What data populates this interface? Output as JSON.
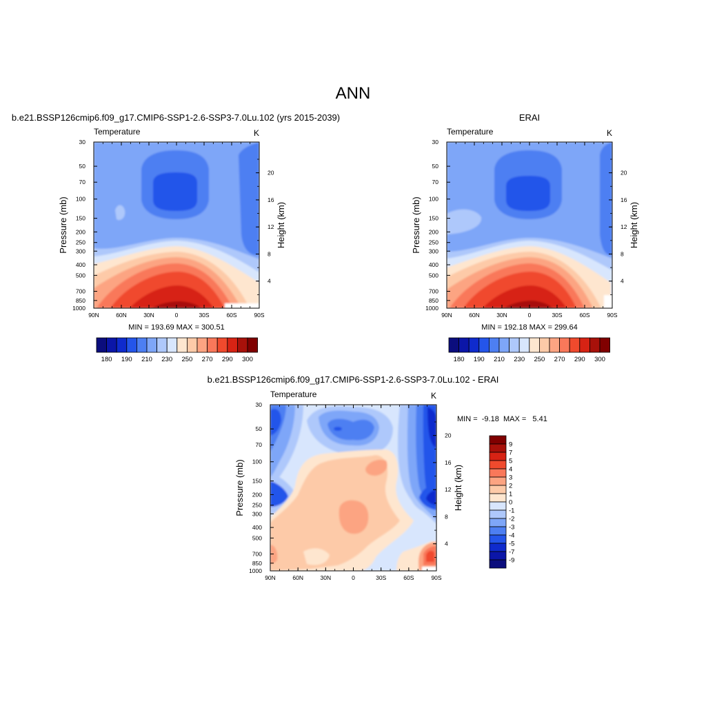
{
  "page_title": "ANN",
  "palette_colors": [
    "#0b0d7d",
    "#0b16a8",
    "#0f2bcd",
    "#2455ea",
    "#4d7ff2",
    "#7ea6f8",
    "#aec8fb",
    "#d8e6fd",
    "#fee6cf",
    "#fdcaa8",
    "#fca482",
    "#f9785a",
    "#f04a2d",
    "#d72314",
    "#a8110a",
    "#800000"
  ],
  "chart_data": [
    {
      "id": "model",
      "type": "contour",
      "title": "b.e21.BSSP126cmip6.f09_g17.CMIP6-SSP1-2.6-SSP3-7.0Lu.102 (yrs 2015-2039)",
      "left_label": "Temperature",
      "units": "K",
      "ylabel": "Pressure (mb)",
      "ylabel_right": "Height (km)",
      "x_ticks": [
        "90N",
        "60N",
        "30N",
        "0",
        "30S",
        "60S",
        "90S"
      ],
      "y_ticks": [
        "30",
        "50",
        "70",
        "100",
        "150",
        "200",
        "250",
        "300",
        "400",
        "500",
        "700",
        "850",
        "1000"
      ],
      "y_ticks_right": [
        "20",
        "16",
        "12",
        "8",
        "4"
      ],
      "y_scale": "log",
      "ylim": [
        1000,
        30
      ],
      "min_max_text": "MIN = 193.69  MAX = 300.51",
      "min": 193.69,
      "max": 300.51,
      "colorbar_labels": [
        "180",
        "190",
        "210",
        "230",
        "250",
        "270",
        "290",
        "300"
      ]
    },
    {
      "id": "obs",
      "type": "contour",
      "title": "ERAI",
      "left_label": "Temperature",
      "units": "K",
      "ylabel": "Pressure (mb)",
      "ylabel_right": "Height (km)",
      "x_ticks": [
        "90N",
        "60N",
        "30N",
        "0",
        "30S",
        "60S",
        "90S"
      ],
      "y_ticks": [
        "30",
        "50",
        "70",
        "100",
        "150",
        "200",
        "250",
        "300",
        "400",
        "500",
        "700",
        "850",
        "1000"
      ],
      "y_ticks_right": [
        "20",
        "16",
        "12",
        "8",
        "4"
      ],
      "y_scale": "log",
      "ylim": [
        1000,
        30
      ],
      "min_max_text": "MIN = 192.18  MAX = 299.64",
      "min": 192.18,
      "max": 299.64,
      "colorbar_labels": [
        "180",
        "190",
        "210",
        "230",
        "250",
        "270",
        "290",
        "300"
      ]
    },
    {
      "id": "diff",
      "type": "contour",
      "title": "b.e21.BSSP126cmip6.f09_g17.CMIP6-SSP1-2.6-SSP3-7.0Lu.102 - ERAI",
      "left_label": "Temperature",
      "units": "K",
      "ylabel": "Pressure (mb)",
      "ylabel_right": "Height (km)",
      "x_ticks": [
        "90N",
        "60N",
        "30N",
        "0",
        "30S",
        "60S",
        "90S"
      ],
      "y_ticks": [
        "30",
        "50",
        "70",
        "100",
        "150",
        "200",
        "250",
        "300",
        "400",
        "500",
        "700",
        "850",
        "1000"
      ],
      "y_ticks_right": [
        "20",
        "16",
        "12",
        "8",
        "4"
      ],
      "y_scale": "log",
      "ylim": [
        1000,
        30
      ],
      "min_max_text": "MIN =  -9.18  MAX =   5.41",
      "min": -9.18,
      "max": 5.41,
      "colorbar_labels": [
        "9",
        "7",
        "5",
        "4",
        "3",
        "2",
        "1",
        "0",
        "-1",
        "-2",
        "-3",
        "-4",
        "-5",
        "-7",
        "-9"
      ]
    }
  ]
}
